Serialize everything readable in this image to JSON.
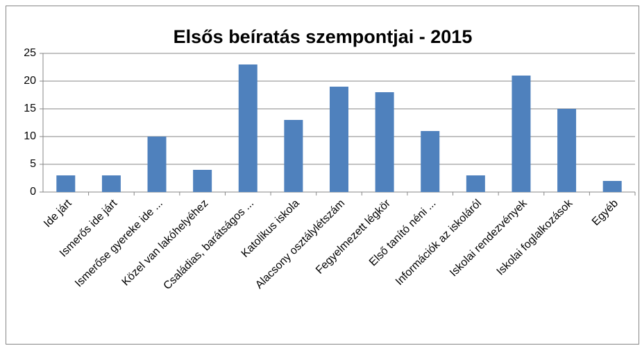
{
  "chart_data": {
    "type": "bar",
    "title": "Elsős beíratás szempontjai - 2015",
    "categories": [
      "Ide járt",
      "Ismerős ide járt",
      "Ismerőse gyereke ide ...",
      "Közel van lakóhelyéhez",
      "Családias, barátságos ...",
      "Katolikus iskola",
      "Alacsony osztálylétszám",
      "Fegyelmezett légkör",
      "Első tanító néni ...",
      "Információk az iskoláról",
      "Iskolai rendezvények",
      "Iskolai foglalkozások",
      "Egyéb"
    ],
    "values": [
      3,
      3,
      10,
      4,
      23,
      13,
      19,
      18,
      11,
      3,
      21,
      15,
      2
    ],
    "color": "#4f81bd",
    "ylim": [
      0,
      25
    ],
    "yticks": [
      0,
      5,
      10,
      15,
      20,
      25
    ],
    "grid": true
  }
}
